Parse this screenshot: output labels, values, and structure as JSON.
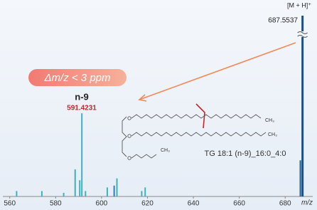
{
  "chart_data": {
    "type": "bar",
    "x": [
      563.0,
      574.0,
      583.5,
      588.5,
      590.5,
      591.4231,
      593.0,
      602.5,
      605.5,
      606.7,
      617.5,
      619.0,
      686.6,
      687.5537
    ],
    "values": [
      3,
      3,
      2,
      15,
      9,
      46,
      3,
      5,
      6,
      10,
      3,
      5,
      20,
      100
    ],
    "colors": [
      "#3fb1bd",
      "#3fb1bd",
      "#3fb1bd",
      "#3fb1bd",
      "#3fb1bd",
      "#3fb1bd",
      "#3fb1bd",
      "#3fb1bd",
      "#2f7fbf",
      "#3fb1bd",
      "#3fb1bd",
      "#3fb1bd",
      "#1f5b8a",
      "#1f4f7d"
    ],
    "xlim": [
      557,
      692
    ],
    "xticks": [
      560,
      580,
      600,
      620,
      640,
      660,
      680
    ],
    "ylim": [
      0,
      100
    ],
    "x_label": "m/z",
    "annotations": {
      "precursor_ion": "[M + H]⁺",
      "precursor_mz": "687.5537",
      "mass_error": "Δm/z < 3 ppm",
      "isomer": "n-9",
      "fragment_mz": "591.4231",
      "lipid": "TG 18:1 (n-9)_16:0_4:0",
      "ch3": [
        "CH₃",
        "CH₃",
        "CH₃"
      ]
    }
  }
}
